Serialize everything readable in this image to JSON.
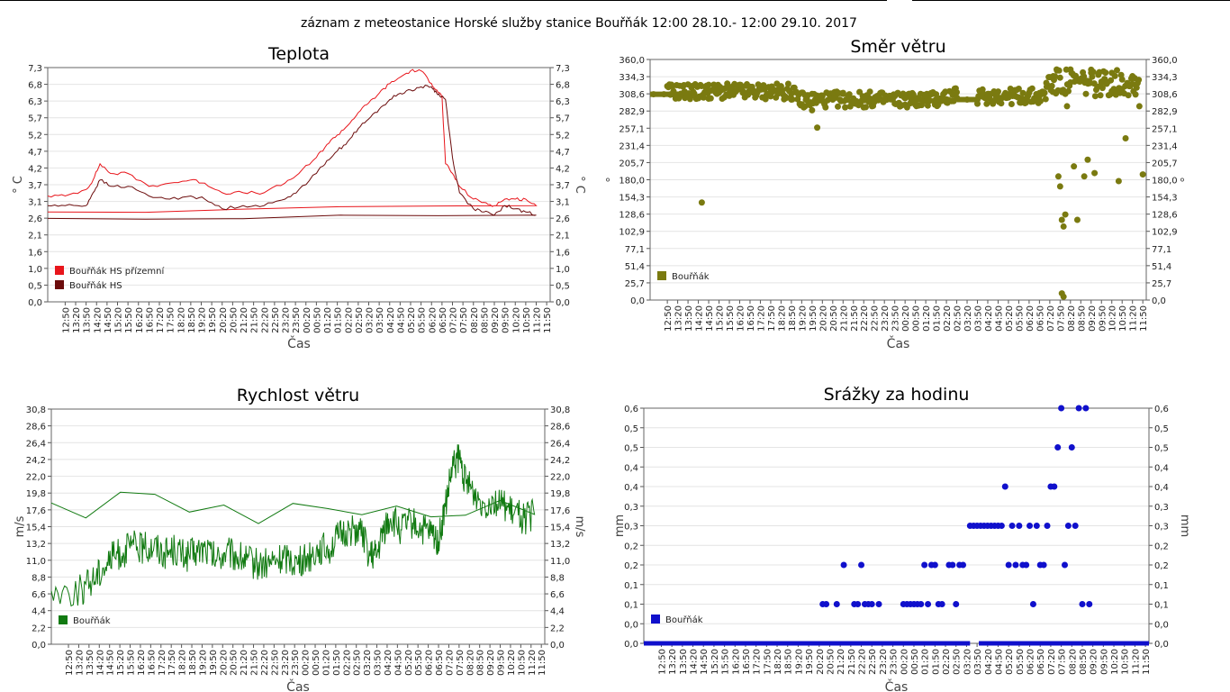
{
  "page": {
    "title": "záznam z meteostanice Horské služby stanice Bouřňák 12:00 28.10.- 12:00 29.10. 2017"
  },
  "time_ticks": [
    "12:50",
    "13:20",
    "13:50",
    "14:20",
    "14:50",
    "15:20",
    "15:50",
    "16:20",
    "16:50",
    "17:20",
    "17:50",
    "18:20",
    "18:50",
    "19:20",
    "19:50",
    "20:20",
    "20:50",
    "21:20",
    "21:50",
    "22:20",
    "22:50",
    "23:20",
    "23:50",
    "00:20",
    "00:50",
    "01:20",
    "01:50",
    "02:20",
    "02:50",
    "03:20",
    "03:50",
    "04:20",
    "04:50",
    "05:20",
    "05:50",
    "06:20",
    "06:50",
    "07:20",
    "07:50",
    "08:20",
    "08:50",
    "09:20",
    "09:50",
    "10:20",
    "10:50",
    "11:20",
    "11:50"
  ],
  "chart_data": [
    {
      "id": "teplota",
      "type": "line",
      "title": "Teplota",
      "xlabel": "Čas",
      "ylabel": "° C",
      "ylim": [
        0,
        7.3
      ],
      "yticks": [
        "0,0",
        "0,5",
        "1,0",
        "1,6",
        "2,1",
        "2,6",
        "3,1",
        "3,7",
        "4,2",
        "4,7",
        "5,2",
        "5,7",
        "6,3",
        "6,8",
        "7,3"
      ],
      "grid": true,
      "legend": "bottom-left",
      "x": [
        "12:00",
        "12:50",
        "13:50",
        "14:10",
        "14:30",
        "15:00",
        "15:50",
        "16:50",
        "17:50",
        "18:50",
        "19:30",
        "20:20",
        "21:20",
        "22:20",
        "23:20",
        "00:00",
        "00:50",
        "01:20",
        "01:50",
        "02:20",
        "02:50",
        "03:20",
        "03:50",
        "04:20",
        "04:50",
        "05:20",
        "05:50",
        "06:20",
        "06:35",
        "06:50",
        "07:00",
        "07:20",
        "07:40",
        "08:20",
        "08:50",
        "09:20",
        "09:50",
        "10:20",
        "10:50",
        "11:20",
        "12:00"
      ],
      "series": [
        {
          "name": "Bouřňák HS přízemní",
          "color": "#e8151b",
          "values": [
            3.3,
            3.3,
            3.5,
            3.8,
            4.3,
            4.0,
            4.0,
            3.6,
            3.7,
            3.8,
            3.7,
            3.4,
            3.4,
            3.4,
            3.7,
            4.0,
            4.5,
            4.9,
            5.2,
            5.5,
            5.9,
            6.2,
            6.5,
            6.8,
            7.0,
            7.2,
            7.2,
            6.8,
            6.6,
            6.4,
            4.3,
            4.0,
            3.6,
            3.2,
            3.1,
            3.0,
            3.2,
            3.2,
            3.2,
            3.0,
            2.8
          ]
        },
        {
          "name": "Bouřňák HS",
          "color": "#6b0b0b",
          "values": [
            3.0,
            3.0,
            3.0,
            3.4,
            3.8,
            3.6,
            3.6,
            3.3,
            3.2,
            3.3,
            3.2,
            2.9,
            3.0,
            3.0,
            3.2,
            3.5,
            4.0,
            4.4,
            4.7,
            5.0,
            5.4,
            5.7,
            6.0,
            6.3,
            6.5,
            6.6,
            6.7,
            6.7,
            6.5,
            6.4,
            6.3,
            4.5,
            3.4,
            2.9,
            2.8,
            2.7,
            3.0,
            2.9,
            2.8,
            2.7,
            2.6
          ]
        }
      ]
    },
    {
      "id": "smer",
      "type": "scatter",
      "title": "Směr větru",
      "xlabel": "Čas",
      "ylabel": "°",
      "ylim": [
        0,
        360
      ],
      "yticks": [
        "0,0",
        "25,7",
        "51,4",
        "77,1",
        "102,9",
        "128,6",
        "154,3",
        "180,0",
        "205,7",
        "231,4",
        "257,1",
        "282,9",
        "308,6",
        "334,3",
        "360,0"
      ],
      "grid": true,
      "legend": "bottom-left",
      "series": [
        {
          "name": "Bouřňák",
          "color": "#7a7a10",
          "points": [
            [
              "12:10",
              308
            ],
            [
              "12:40",
              308
            ],
            [
              "13:00",
              308
            ],
            [
              "13:20",
              307
            ],
            [
              "13:40",
              312
            ],
            [
              "14:00",
              318
            ],
            [
              "14:20",
              302
            ],
            [
              "14:30",
              146
            ],
            [
              "14:50",
              322
            ],
            [
              "15:20",
              315
            ],
            [
              "15:50",
              310
            ],
            [
              "16:20",
              322
            ],
            [
              "16:50",
              318
            ],
            [
              "17:20",
              315
            ],
            [
              "17:50",
              312
            ],
            [
              "18:20",
              320
            ],
            [
              "18:50",
              300
            ],
            [
              "19:20",
              293
            ],
            [
              "19:30",
              290
            ],
            [
              "19:50",
              284
            ],
            [
              "20:05",
              258
            ],
            [
              "20:20",
              305
            ],
            [
              "20:50",
              300
            ],
            [
              "21:20",
              310
            ],
            [
              "21:50",
              298
            ],
            [
              "22:20",
              304
            ],
            [
              "22:50",
              296
            ],
            [
              "23:20",
              300
            ],
            [
              "23:50",
              294
            ],
            [
              "00:20",
              302
            ],
            [
              "00:50",
              298
            ],
            [
              "01:20",
              306
            ],
            [
              "01:50",
              300
            ],
            [
              "02:20",
              296
            ],
            [
              "02:50",
              303
            ],
            [
              "03:20",
              300
            ],
            [
              "03:50",
              300
            ],
            [
              "04:20",
              305
            ],
            [
              "04:50",
              312
            ],
            [
              "05:20",
              308
            ],
            [
              "05:50",
              303
            ],
            [
              "06:20",
              310
            ],
            [
              "06:50",
              305
            ],
            [
              "07:10",
              325
            ],
            [
              "07:30",
              335
            ],
            [
              "07:40",
              345
            ],
            [
              "07:45",
              185
            ],
            [
              "07:50",
              170
            ],
            [
              "07:55",
              120
            ],
            [
              "08:00",
              110
            ],
            [
              "08:05",
              128
            ],
            [
              "08:10",
              290
            ],
            [
              "08:20",
              345
            ],
            [
              "08:30",
              200
            ],
            [
              "08:40",
              120
            ],
            [
              "08:50",
              330
            ],
            [
              "09:00",
              185
            ],
            [
              "09:10",
              210
            ],
            [
              "09:20",
              340
            ],
            [
              "09:30",
              190
            ],
            [
              "09:50",
              325
            ],
            [
              "10:20",
              340
            ],
            [
              "10:40",
              178
            ],
            [
              "10:50",
              330
            ],
            [
              "11:00",
              242
            ],
            [
              "11:20",
              335
            ],
            [
              "11:40",
              290
            ],
            [
              "11:50",
              188
            ],
            [
              "07:55",
              10
            ],
            [
              "08:00",
              5
            ]
          ]
        }
      ]
    },
    {
      "id": "rychlost",
      "type": "line",
      "title": "Rychlost větru",
      "xlabel": "Čas",
      "ylabel": "m/s",
      "ylim": [
        0,
        30.8
      ],
      "yticks": [
        "0,0",
        "2,2",
        "4,4",
        "6,6",
        "8,8",
        "11,0",
        "13,2",
        "15,4",
        "17,6",
        "19,8",
        "22,0",
        "24,2",
        "26,4",
        "28,6",
        "30,8"
      ],
      "grid": true,
      "legend": "bottom-left",
      "x": [
        "12:00",
        "13:30",
        "14:00",
        "14:30",
        "15:00",
        "15:30",
        "16:00",
        "16:30",
        "17:00",
        "17:30",
        "18:00",
        "18:30",
        "19:00",
        "19:30",
        "20:00",
        "20:30",
        "21:00",
        "21:30",
        "22:00",
        "22:30",
        "23:00",
        "23:30",
        "00:00",
        "00:30",
        "01:00",
        "01:30",
        "02:00",
        "02:30",
        "03:00",
        "03:30",
        "03:50",
        "04:10",
        "04:30",
        "05:00",
        "05:30",
        "06:00",
        "06:30",
        "06:50",
        "07:10",
        "07:30",
        "07:50",
        "08:10",
        "08:30",
        "09:00",
        "09:30",
        "10:00",
        "10:30",
        "11:00",
        "11:30",
        "12:00"
      ],
      "series": [
        {
          "name": "Bouřňák",
          "color": "#117a11",
          "values": [
            7.0,
            7.0,
            8.5,
            10.0,
            11.5,
            12.0,
            13.0,
            12.5,
            13.0,
            12.0,
            12.5,
            11.5,
            12.0,
            12.5,
            11.0,
            12.0,
            11.5,
            11.0,
            10.5,
            10.5,
            11.0,
            11.5,
            10.5,
            11.5,
            12.5,
            12.5,
            14.0,
            15.0,
            15.0,
            11.5,
            11.5,
            15.0,
            16.5,
            15.0,
            16.0,
            15.0,
            14.5,
            13.5,
            18.0,
            23.0,
            24.5,
            21.0,
            20.0,
            18.5,
            19.0,
            18.0,
            17.0,
            16.5,
            17.0,
            18.5
          ]
        }
      ]
    },
    {
      "id": "srazky",
      "type": "scatter",
      "title": "Srážky za hodinu",
      "xlabel": "Čas",
      "ylabel": "mm",
      "ylim": [
        0,
        0.6
      ],
      "yticks": [
        "0,0",
        "0,0",
        "0,1",
        "0,1",
        "0,2",
        "0,2",
        "0,3",
        "0,3",
        "0,4",
        "0,4",
        "0,5",
        "0,5",
        "0,6"
      ],
      "grid": true,
      "legend": "bottom-left",
      "series": [
        {
          "name": "Bouřňák",
          "color": "#1010cc",
          "points": [
            [
              "20:30",
              0.1
            ],
            [
              "20:40",
              0.1
            ],
            [
              "21:10",
              0.1
            ],
            [
              "21:30",
              0.2
            ],
            [
              "22:00",
              0.1
            ],
            [
              "22:10",
              0.1
            ],
            [
              "22:20",
              0.2
            ],
            [
              "22:30",
              0.1
            ],
            [
              "22:40",
              0.1
            ],
            [
              "22:50",
              0.1
            ],
            [
              "23:10",
              0.1
            ],
            [
              "00:20",
              0.1
            ],
            [
              "00:30",
              0.1
            ],
            [
              "00:40",
              0.1
            ],
            [
              "00:50",
              0.1
            ],
            [
              "01:00",
              0.1
            ],
            [
              "01:10",
              0.1
            ],
            [
              "01:20",
              0.2
            ],
            [
              "01:30",
              0.1
            ],
            [
              "01:40",
              0.2
            ],
            [
              "01:50",
              0.2
            ],
            [
              "02:00",
              0.1
            ],
            [
              "02:10",
              0.1
            ],
            [
              "02:30",
              0.2
            ],
            [
              "02:40",
              0.2
            ],
            [
              "02:50",
              0.1
            ],
            [
              "03:00",
              0.2
            ],
            [
              "03:10",
              0.2
            ],
            [
              "03:30",
              0.3
            ],
            [
              "03:40",
              0.3
            ],
            [
              "03:50",
              0.3
            ],
            [
              "04:00",
              0.3
            ],
            [
              "04:10",
              0.3
            ],
            [
              "04:20",
              0.3
            ],
            [
              "04:30",
              0.3
            ],
            [
              "04:40",
              0.3
            ],
            [
              "04:50",
              0.3
            ],
            [
              "05:00",
              0.3
            ],
            [
              "05:10",
              0.4
            ],
            [
              "05:20",
              0.2
            ],
            [
              "05:30",
              0.3
            ],
            [
              "05:40",
              0.2
            ],
            [
              "05:50",
              0.3
            ],
            [
              "06:00",
              0.2
            ],
            [
              "06:10",
              0.2
            ],
            [
              "06:20",
              0.3
            ],
            [
              "06:30",
              0.1
            ],
            [
              "06:40",
              0.3
            ],
            [
              "06:50",
              0.2
            ],
            [
              "07:00",
              0.2
            ],
            [
              "07:10",
              0.3
            ],
            [
              "07:20",
              0.4
            ],
            [
              "07:30",
              0.4
            ],
            [
              "07:40",
              0.5
            ],
            [
              "07:50",
              0.6
            ],
            [
              "08:00",
              0.2
            ],
            [
              "08:10",
              0.3
            ],
            [
              "08:20",
              0.5
            ],
            [
              "08:30",
              0.3
            ],
            [
              "08:40",
              0.6
            ],
            [
              "08:50",
              0.1
            ],
            [
              "09:00",
              0.6
            ],
            [
              "09:10",
              0.1
            ]
          ]
        }
      ]
    }
  ]
}
